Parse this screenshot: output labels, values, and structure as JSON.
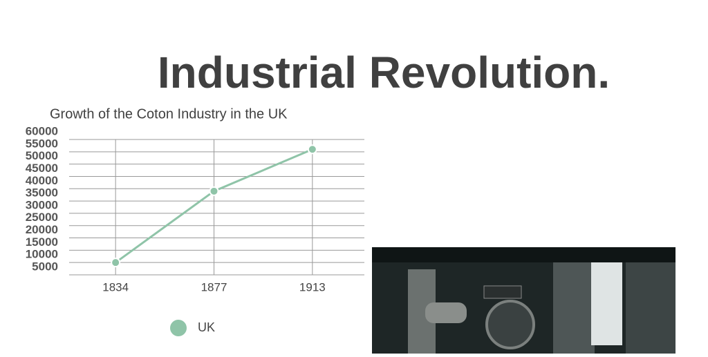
{
  "slide_title": "Industrial Revolution.",
  "chart_data": {
    "type": "line",
    "title": "Growth of the Coton Industry in the UK",
    "categories": [
      "1834",
      "1877",
      "1913"
    ],
    "series": [
      {
        "name": "UK",
        "color": "#8fc4a8",
        "values": [
          10000,
          39000,
          56000
        ]
      }
    ],
    "ylim": [
      5000,
      60000
    ],
    "yticks": [
      5000,
      10000,
      15000,
      20000,
      25000,
      30000,
      35000,
      40000,
      45000,
      50000,
      55000,
      60000
    ],
    "grid": true,
    "legend": "bottom"
  }
}
